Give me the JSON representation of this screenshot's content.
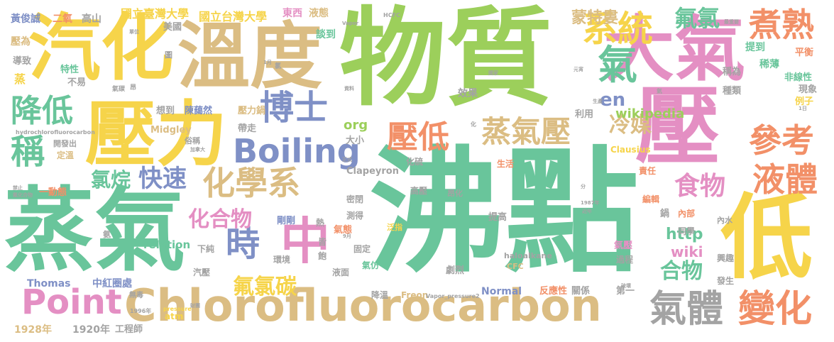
{
  "palette": {
    "green": "#69c59b",
    "lime": "#9ccf5b",
    "tan": "#dbbd83",
    "yellow": "#f6d44a",
    "pink": "#e48fc3",
    "blue": "#7f90c6",
    "orange": "#f29068",
    "gray": "#a3a3a3"
  },
  "words": [
    {
      "text": "沸點",
      "color": "#69c59b"
    },
    {
      "text": "物質",
      "color": "#9ccf5b"
    },
    {
      "text": "蒸氣",
      "color": "#69c59b"
    },
    {
      "text": "壓力",
      "color": "#f6d44a"
    },
    {
      "text": "汽化",
      "color": "#f6d44a"
    },
    {
      "text": "溫度",
      "color": "#dbbd83"
    },
    {
      "text": "大氣",
      "color": "#e48fc3"
    },
    {
      "text": "壓",
      "color": "#e48fc3"
    },
    {
      "text": "低",
      "color": "#f6d44a"
    },
    {
      "text": "中",
      "color": "#e48fc3"
    },
    {
      "text": "Chlorofluorocarbon",
      "color": "#dbbd83"
    },
    {
      "text": "Boiling",
      "color": "#7f90c6"
    },
    {
      "text": "Point",
      "color": "#e48fc3"
    },
    {
      "text": "化學系",
      "color": "#dbbd83"
    },
    {
      "text": "蒸氣壓",
      "color": "#dbbd83"
    },
    {
      "text": "系統",
      "color": "#f6d44a"
    },
    {
      "text": "博士",
      "color": "#7f90c6"
    },
    {
      "text": "降低",
      "color": "#69c59b"
    },
    {
      "text": "稱",
      "color": "#69c59b"
    },
    {
      "text": "壓低",
      "color": "#f29068"
    },
    {
      "text": "煮熟",
      "color": "#f29068"
    },
    {
      "text": "參考",
      "color": "#f29068"
    },
    {
      "text": "氣體",
      "color": "#a3a3a3"
    },
    {
      "text": "變化",
      "color": "#f29068"
    },
    {
      "text": "液體",
      "color": "#f29068"
    },
    {
      "text": "食物",
      "color": "#e48fc3"
    },
    {
      "text": "時",
      "color": "#7f90c6"
    },
    {
      "text": "氟氯",
      "color": "#69c59b"
    },
    {
      "text": "氣",
      "color": "#69c59b"
    },
    {
      "text": "冷媒",
      "color": "#dbbd83"
    },
    {
      "text": "快速",
      "color": "#7f90c6"
    },
    {
      "text": "氯烷",
      "color": "#69c59b"
    },
    {
      "text": "化合物",
      "color": "#e48fc3"
    },
    {
      "text": "氟氯碳",
      "color": "#f6d44a"
    },
    {
      "text": "合物",
      "color": "#69c59b"
    },
    {
      "text": "蒙特婁",
      "color": "#dbbd83"
    },
    {
      "text": "en",
      "color": "#7f90c6"
    },
    {
      "text": "wikipedia",
      "color": "#9ccf5b"
    },
    {
      "text": "org",
      "color": "#9ccf5b"
    },
    {
      "text": "http",
      "color": "#69c59b"
    },
    {
      "text": "wiki",
      "color": "#e48fc3"
    },
    {
      "text": "國立臺灣大學",
      "color": "#f6d44a"
    },
    {
      "text": "國立台灣大學",
      "color": "#f6d44a"
    },
    {
      "text": "東西",
      "color": "#e48fc3"
    },
    {
      "text": "液態",
      "color": "#dbbd83"
    },
    {
      "text": "黃俊誠",
      "color": "#7f90c6"
    },
    {
      "text": "二氧",
      "color": "#f29068"
    },
    {
      "text": "高山",
      "color": "#a3a3a3"
    },
    {
      "text": "談到",
      "color": "#69c59b"
    },
    {
      "text": "美國",
      "color": "#a3a3a3"
    },
    {
      "text": "壓為",
      "color": "#dbbd83"
    },
    {
      "text": "導致",
      "color": "#a3a3a3"
    },
    {
      "text": "特性",
      "color": "#69c59b"
    },
    {
      "text": "不易",
      "color": "#a3a3a3"
    },
    {
      "text": "蒸",
      "color": "#f6d44a"
    },
    {
      "text": "效果",
      "color": "#a3a3a3"
    },
    {
      "text": "提到",
      "color": "#69c59b"
    },
    {
      "text": "平衡",
      "color": "#f29068"
    },
    {
      "text": "稀薄",
      "color": "#69c59b"
    },
    {
      "text": "稱為",
      "color": "#a3a3a3"
    },
    {
      "text": "種類",
      "color": "#a3a3a3"
    },
    {
      "text": "非線性",
      "color": "#69c59b"
    },
    {
      "text": "現象",
      "color": "#a3a3a3"
    },
    {
      "text": "例子",
      "color": "#f6d44a"
    },
    {
      "text": "利用",
      "color": "#a3a3a3"
    },
    {
      "text": "想到",
      "color": "#a3a3a3"
    },
    {
      "text": "陳藹然",
      "color": "#7f90c6"
    },
    {
      "text": "壓力鍋",
      "color": "#dbbd83"
    },
    {
      "text": "Midgley",
      "color": "#dbbd83"
    },
    {
      "text": "俗稱",
      "color": "#a3a3a3"
    },
    {
      "text": "開發出",
      "color": "#a3a3a3"
    },
    {
      "text": "定溫",
      "color": "#dbbd83"
    },
    {
      "text": "一動態",
      "color": "#f29068"
    },
    {
      "text": "帶走",
      "color": "#a3a3a3"
    },
    {
      "text": "大小",
      "color": "#a3a3a3"
    },
    {
      "text": "Clausius",
      "color": "#f6d44a"
    },
    {
      "text": "化硫",
      "color": "#a3a3a3"
    },
    {
      "text": "生活",
      "color": "#f29068"
    },
    {
      "text": "責任",
      "color": "#f29068"
    },
    {
      "text": "Clapeyron",
      "color": "#a3a3a3"
    },
    {
      "text": "密閉",
      "color": "#a3a3a3"
    },
    {
      "text": "高壓",
      "color": "#a3a3a3"
    },
    {
      "text": "昂化",
      "color": "#a3a3a3"
    },
    {
      "text": "剛剛",
      "color": "#7f90c6"
    },
    {
      "text": "測得",
      "color": "#a3a3a3"
    },
    {
      "text": "提高",
      "color": "#a3a3a3"
    },
    {
      "text": "鍋",
      "color": "#a3a3a3"
    },
    {
      "text": "內部",
      "color": "#f29068"
    },
    {
      "text": "編輯",
      "color": "#f29068"
    },
    {
      "text": "同學",
      "color": "#a3a3a3"
    },
    {
      "text": "內水",
      "color": "#a3a3a3"
    },
    {
      "text": "氣態",
      "color": "#f29068"
    },
    {
      "text": "泛指",
      "color": "#f6d44a"
    },
    {
      "text": "固定",
      "color": "#a3a3a3"
    },
    {
      "text": "氣壓",
      "color": "#e48fc3"
    },
    {
      "text": "過程",
      "color": "#a3a3a3"
    },
    {
      "text": "興趣",
      "color": "#a3a3a3"
    },
    {
      "text": "發生",
      "color": "#a3a3a3"
    },
    {
      "text": "relation",
      "color": "#69c59b"
    },
    {
      "text": "下純",
      "color": "#a3a3a3"
    },
    {
      "text": "環境",
      "color": "#a3a3a3"
    },
    {
      "text": "飽",
      "color": "#a3a3a3"
    },
    {
      "text": "液面",
      "color": "#a3a3a3"
    },
    {
      "text": "氣仿",
      "color": "#69c59b"
    },
    {
      "text": "haloalkane",
      "color": "#a3a3a3"
    },
    {
      "text": "CFC",
      "color": "#dbbd83"
    },
    {
      "text": "汽壓",
      "color": "#a3a3a3"
    },
    {
      "text": "中紅圈處",
      "color": "#7f90c6"
    },
    {
      "text": "Thomas",
      "color": "#7f90c6"
    },
    {
      "text": "無毒",
      "color": "#a3a3a3"
    },
    {
      "text": "劇烈",
      "color": "#a3a3a3"
    },
    {
      "text": "Normal",
      "color": "#7f90c6"
    },
    {
      "text": "反應性",
      "color": "#f29068"
    },
    {
      "text": "關係",
      "color": "#a3a3a3"
    },
    {
      "text": "第一",
      "color": "#a3a3a3"
    },
    {
      "text": "降溫",
      "color": "#a3a3a3"
    },
    {
      "text": "atm",
      "color": "#f6d44a"
    },
    {
      "text": "1928年",
      "color": "#dbbd83"
    },
    {
      "text": "1920年",
      "color": "#a3a3a3"
    },
    {
      "text": "工程師",
      "color": "#a3a3a3"
    },
    {
      "text": "Freon",
      "color": "#dbbd83"
    },
    {
      "text": "Vapor_pressure2",
      "color": "#a3a3a3"
    },
    {
      "text": "hydrochlorofluorocarbon",
      "color": "#a3a3a3"
    },
    {
      "text": "HCFC",
      "color": "#a3a3a3"
    },
    {
      "text": "Vapor",
      "color": "#a3a3a3"
    },
    {
      "text": "pressure",
      "color": "#f6d44a"
    },
    {
      "text": "1996年",
      "color": "#a3a3a3"
    },
    {
      "text": "1987年",
      "color": "#a3a3a3"
    },
    {
      "text": "熱",
      "color": "#a3a3a3"
    },
    {
      "text": "皆",
      "color": "#a3a3a3"
    },
    {
      "text": "氨",
      "color": "#a3a3a3"
    },
    {
      "text": "氣碳",
      "color": "#a3a3a3"
    },
    {
      "text": "圖",
      "color": "#a3a3a3"
    },
    {
      "text": "氯",
      "color": "#a3a3a3"
    },
    {
      "text": "資料",
      "color": "#a3a3a3"
    },
    {
      "text": "禁止",
      "color": "#a3a3a3"
    },
    {
      "text": "加拿大",
      "color": "#a3a3a3"
    },
    {
      "text": "正式",
      "color": "#a3a3a3"
    },
    {
      "text": "化",
      "color": "#a3a3a3"
    },
    {
      "text": "1日",
      "color": "#a3a3a3"
    },
    {
      "text": "生產",
      "color": "#a3a3a3"
    },
    {
      "text": "元宵",
      "color": "#a3a3a3"
    },
    {
      "text": "國家",
      "color": "#a3a3a3"
    },
    {
      "text": "9月",
      "color": "#a3a3a3"
    },
    {
      "text": "1月",
      "color": "#a3a3a3"
    },
    {
      "text": "單位",
      "color": "#a3a3a3"
    },
    {
      "text": "分",
      "color": "#a3a3a3"
    },
    {
      "text": "近年",
      "color": "#a3a3a3"
    },
    {
      "text": "最重要",
      "color": "#a3a3a3"
    },
    {
      "text": "昂",
      "color": "#a3a3a3"
    },
    {
      "text": "氣",
      "color": "#a3a3a3"
    },
    {
      "text": "破壞",
      "color": "#a3a3a3"
    },
    {
      "text": "財團",
      "color": "#a3a3a3"
    },
    {
      "text": "氟化合物",
      "color": "#a3a3a3"
    }
  ]
}
